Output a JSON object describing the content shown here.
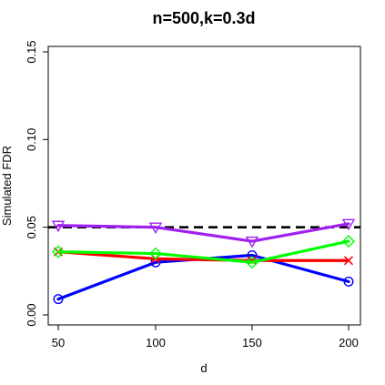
{
  "chart_data": {
    "type": "line",
    "title": "n=500,k=0.3d",
    "xlabel": "d",
    "ylabel": "Simulated FDR",
    "x": [
      50,
      100,
      150,
      200
    ],
    "x_ticks": [
      "50",
      "100",
      "150",
      "200"
    ],
    "y_ticks": [
      "0.00",
      "0.05",
      "0.10",
      "0.15"
    ],
    "xlim": [
      50,
      200
    ],
    "ylim": [
      0,
      0.15
    ],
    "grid": false,
    "legend": null,
    "reference_line": {
      "y": 0.05,
      "style": "dashed",
      "color": "#000000"
    },
    "series": [
      {
        "color": "#0000ff",
        "marker": "circle",
        "values": [
          0.009,
          0.03,
          0.034,
          0.019
        ]
      },
      {
        "color": "#ff0000",
        "marker": "x",
        "values": [
          0.036,
          0.032,
          0.031,
          0.031
        ]
      },
      {
        "color": "#00ff00",
        "marker": "diamond",
        "values": [
          0.036,
          0.035,
          0.03,
          0.042
        ]
      },
      {
        "color": "#a020f0",
        "marker": "triangle-down",
        "values": [
          0.051,
          0.05,
          0.042,
          0.052
        ]
      }
    ]
  }
}
